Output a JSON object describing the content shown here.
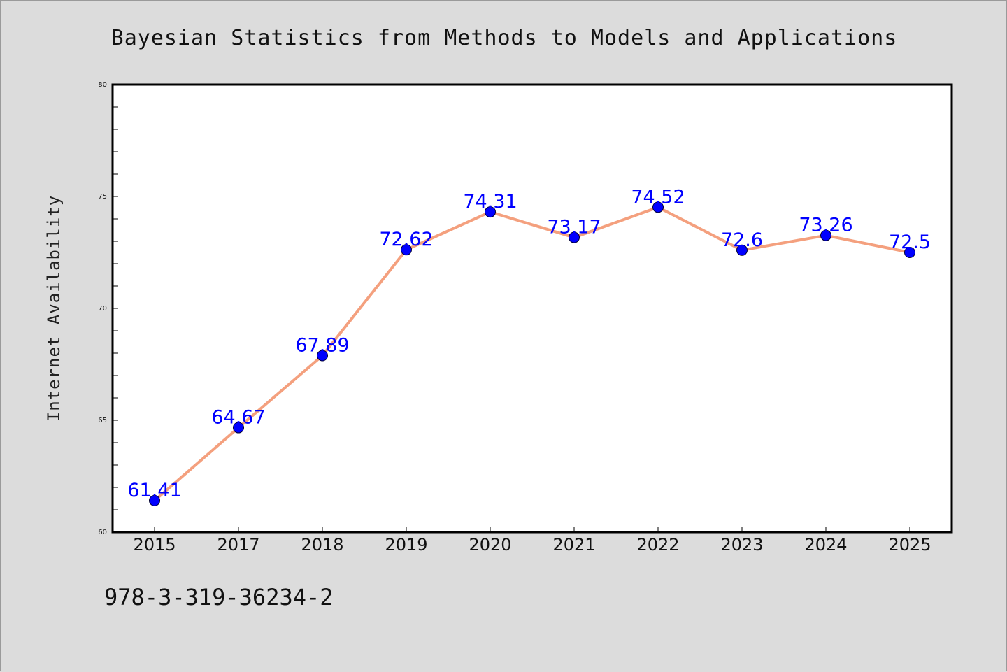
{
  "chart_data": {
    "type": "line",
    "title": "Bayesian Statistics from Methods to Models and Applications",
    "xlabel": "",
    "ylabel": "Internet Availability",
    "footer": "978-3-319-36234-2",
    "categories": [
      "2015",
      "2017",
      "2018",
      "2019",
      "2020",
      "2021",
      "2022",
      "2023",
      "2024",
      "2025"
    ],
    "values": [
      61.41,
      64.67,
      67.89,
      72.62,
      74.31,
      73.17,
      74.52,
      72.6,
      73.26,
      72.5
    ],
    "data_labels": [
      "61.41",
      "64.67",
      "67.89",
      "72.62",
      "74.31",
      "73.17",
      "74.52",
      "72.6",
      "73.26",
      "72.5"
    ],
    "ylim": [
      60,
      80
    ],
    "yticks": [
      "60",
      "65",
      "70",
      "75",
      "80"
    ],
    "grid": false,
    "legend": "none",
    "line_color": "#f4a07e",
    "marker_color": "#0000ff",
    "label_color": "#0000ff",
    "background_color": "#dcdcdc",
    "plot_background_color": "#ffffff"
  }
}
